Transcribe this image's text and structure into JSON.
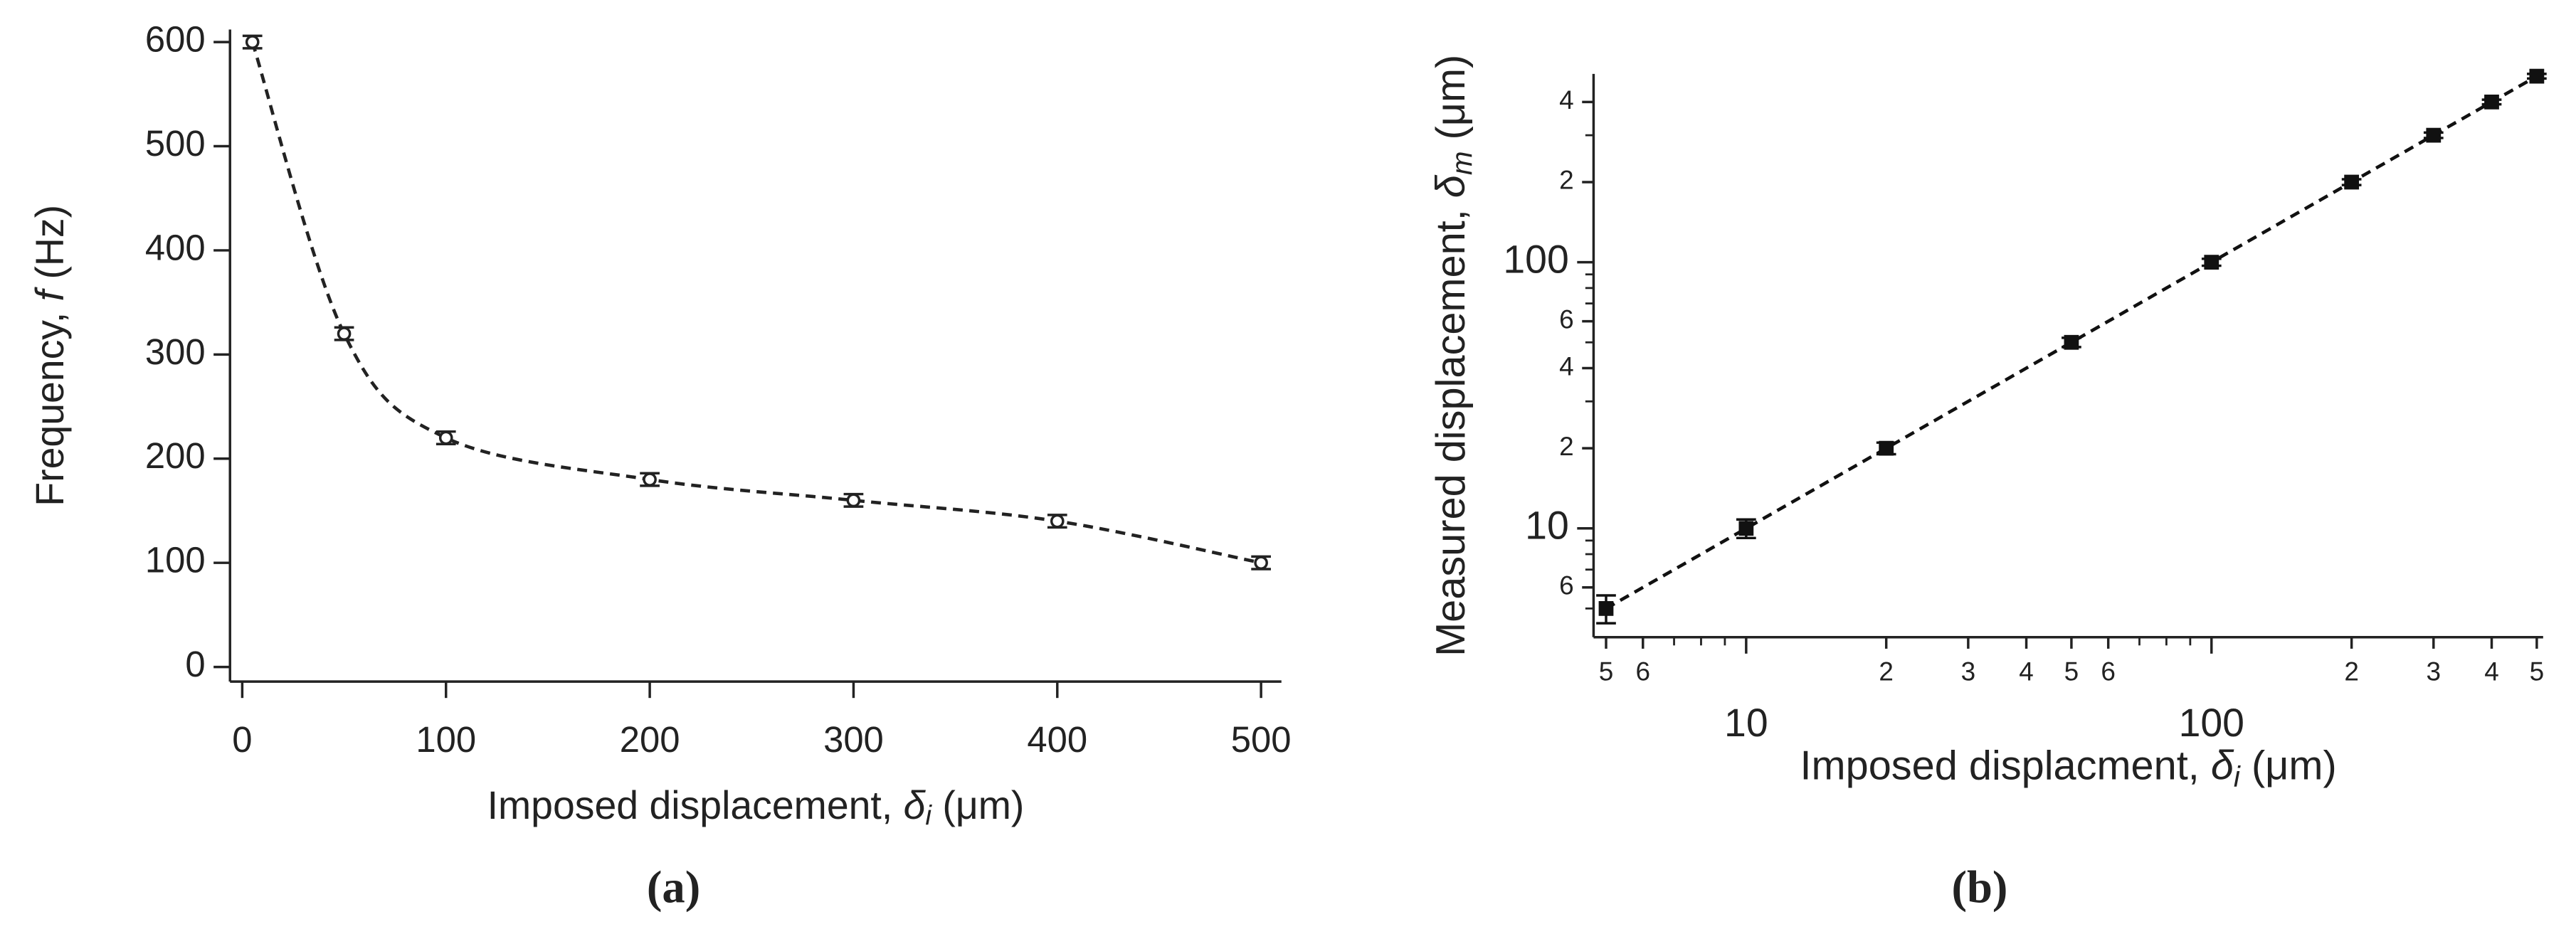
{
  "chart_data": [
    {
      "type": "scatter",
      "panel": "(a)",
      "xlabel": {
        "text": "Imposed displacement, ",
        "symbol": "δ",
        "sub": "i",
        "unit": " (μm)"
      },
      "ylabel": {
        "text": "Frequency, ",
        "symbol": "f",
        "unit": " (Hz)"
      },
      "x": [
        5,
        50,
        100,
        200,
        300,
        400,
        500
      ],
      "values": [
        600,
        320,
        220,
        180,
        160,
        140,
        100
      ],
      "errors": [
        6,
        6,
        6,
        6,
        6,
        6,
        6
      ],
      "color": "#222222",
      "marker": "open-circle",
      "fit_line": "dashed",
      "xlim": [
        -6,
        510
      ],
      "ylim": [
        -14,
        612
      ],
      "xticks": [
        0,
        100,
        200,
        300,
        400,
        500
      ],
      "yticks": [
        0,
        100,
        200,
        300,
        400,
        500,
        600
      ],
      "log": false
    },
    {
      "type": "scatter",
      "panel": "(b)",
      "xlabel": {
        "text": "Imposed displacment, ",
        "symbol": "δ",
        "sub": "i",
        "unit": " (μm)"
      },
      "ylabel": {
        "text": "Measured displacement, ",
        "symbol": "δ",
        "sub": "m",
        "unit": " (μm)"
      },
      "x": [
        5,
        10,
        20,
        50,
        100,
        200,
        300,
        400,
        500
      ],
      "values": [
        5,
        10,
        20,
        50,
        100,
        200,
        300,
        400,
        500
      ],
      "errors": [
        0.6,
        0.8,
        1,
        2,
        3,
        5,
        7,
        8,
        10
      ],
      "color": "#111111",
      "marker": "square",
      "fit_line": "dashed",
      "xlim": [
        4.7,
        516
      ],
      "ylim": [
        3.9,
        510
      ],
      "xticks": [
        5,
        6,
        10,
        {
          "value": 20,
          "label": "2"
        },
        {
          "value": 30,
          "label": "3"
        },
        {
          "value": 40,
          "label": "4"
        },
        {
          "value": 50,
          "label": "5"
        },
        {
          "value": 60,
          "label": "6"
        },
        100,
        {
          "value": 200,
          "label": "2"
        },
        {
          "value": 300,
          "label": "3"
        },
        {
          "value": 400,
          "label": "4"
        },
        {
          "value": 500,
          "label": "5"
        }
      ],
      "xminor": [
        7,
        8,
        9,
        70,
        80,
        90
      ],
      "yticks": [
        6,
        10,
        {
          "value": 20,
          "label": "2"
        },
        {
          "value": 40,
          "label": "4"
        },
        {
          "value": 60,
          "label": "6"
        },
        100,
        {
          "value": 200,
          "label": "2"
        },
        {
          "value": 400,
          "label": "4"
        }
      ],
      "yminor": [
        5,
        7,
        8,
        9,
        30,
        50,
        70,
        80,
        90,
        300
      ],
      "log": true
    }
  ]
}
